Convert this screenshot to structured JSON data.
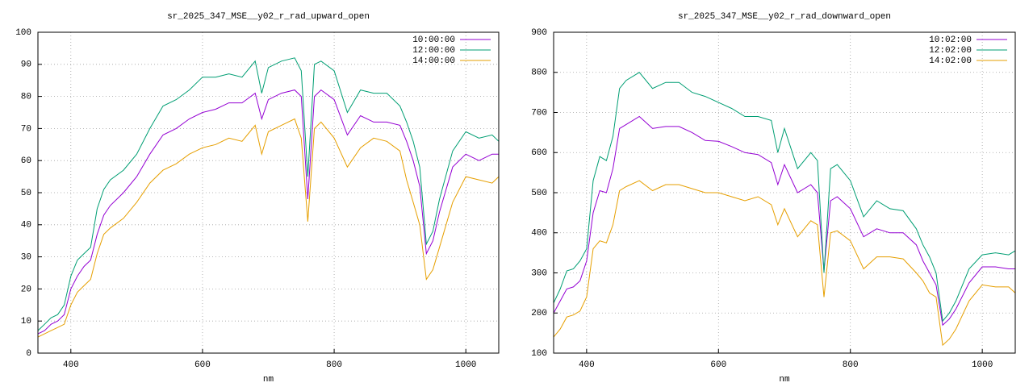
{
  "chart_data": [
    {
      "type": "line",
      "title": "sr_2025_347_MSE__y02_r_rad_upward_open",
      "xlabel": "nm",
      "xlim": [
        350,
        1050
      ],
      "xticks": [
        400,
        600,
        800,
        1000
      ],
      "ylim": [
        0,
        100
      ],
      "yticks": [
        0,
        10,
        20,
        30,
        40,
        50,
        60,
        70,
        80,
        90,
        100
      ],
      "grid": true,
      "legend": "top-right",
      "x": [
        350,
        360,
        370,
        380,
        390,
        400,
        410,
        420,
        430,
        440,
        450,
        460,
        480,
        500,
        520,
        540,
        560,
        580,
        600,
        620,
        640,
        660,
        680,
        690,
        700,
        720,
        740,
        750,
        760,
        770,
        780,
        800,
        820,
        840,
        860,
        880,
        900,
        910,
        920,
        930,
        940,
        950,
        960,
        980,
        1000,
        1020,
        1040,
        1050
      ],
      "series": [
        {
          "name": "10:00:00",
          "color": "#9400d3",
          "values": [
            6,
            7,
            9,
            10,
            12,
            20,
            24,
            27,
            29,
            37,
            43,
            46,
            50,
            55,
            62,
            68,
            70,
            73,
            75,
            76,
            78,
            78,
            81,
            73,
            79,
            81,
            82,
            80,
            48,
            80,
            82,
            79,
            68,
            74,
            72,
            72,
            71,
            66,
            60,
            52,
            31,
            35,
            44,
            58,
            62,
            60,
            62,
            62
          ]
        },
        {
          "name": "12:00:00",
          "color": "#009e73",
          "values": [
            7,
            9,
            11,
            12,
            15,
            24,
            29,
            31,
            33,
            45,
            51,
            54,
            57,
            62,
            70,
            77,
            79,
            82,
            86,
            86,
            87,
            86,
            91,
            81,
            89,
            91,
            92,
            88,
            55,
            90,
            91,
            88,
            75,
            82,
            81,
            81,
            77,
            72,
            66,
            58,
            34,
            38,
            48,
            63,
            69,
            67,
            68,
            66
          ]
        },
        {
          "name": "14:00:00",
          "color": "#e69f00",
          "values": [
            5,
            6,
            7,
            8,
            9,
            15,
            19,
            21,
            23,
            31,
            37,
            39,
            42,
            47,
            53,
            57,
            59,
            62,
            64,
            65,
            67,
            66,
            71,
            62,
            69,
            71,
            73,
            67,
            41,
            70,
            72,
            67,
            58,
            64,
            67,
            66,
            63,
            54,
            47,
            40,
            23,
            26,
            33,
            47,
            55,
            54,
            53,
            55
          ]
        }
      ]
    },
    {
      "type": "line",
      "title": "sr_2025_347_MSE__y02_r_rad_downward_open",
      "xlabel": "nm",
      "xlim": [
        350,
        1050
      ],
      "xticks": [
        400,
        600,
        800,
        1000
      ],
      "ylim": [
        100,
        900
      ],
      "yticks": [
        100,
        200,
        300,
        400,
        500,
        600,
        700,
        800,
        900
      ],
      "grid": true,
      "legend": "top-right",
      "x": [
        350,
        360,
        370,
        380,
        390,
        400,
        410,
        420,
        430,
        440,
        450,
        460,
        480,
        500,
        520,
        540,
        560,
        580,
        600,
        620,
        640,
        660,
        680,
        690,
        700,
        720,
        740,
        750,
        760,
        770,
        780,
        800,
        820,
        840,
        860,
        880,
        900,
        910,
        920,
        930,
        940,
        950,
        960,
        980,
        1000,
        1020,
        1040,
        1050
      ],
      "series": [
        {
          "name": "10:02:00",
          "color": "#9400d3",
          "values": [
            200,
            230,
            260,
            265,
            280,
            330,
            450,
            505,
            500,
            560,
            660,
            670,
            690,
            660,
            665,
            665,
            650,
            630,
            628,
            615,
            600,
            595,
            575,
            520,
            570,
            500,
            520,
            500,
            305,
            480,
            490,
            460,
            390,
            410,
            400,
            400,
            370,
            330,
            300,
            270,
            170,
            185,
            210,
            275,
            315,
            315,
            310,
            310
          ]
        },
        {
          "name": "12:02:00",
          "color": "#009e73",
          "values": [
            225,
            260,
            305,
            310,
            330,
            360,
            530,
            590,
            580,
            640,
            760,
            780,
            800,
            760,
            775,
            775,
            750,
            740,
            725,
            710,
            690,
            690,
            680,
            600,
            660,
            560,
            600,
            580,
            300,
            560,
            570,
            530,
            440,
            480,
            460,
            455,
            410,
            370,
            340,
            300,
            180,
            200,
            230,
            310,
            345,
            350,
            345,
            355
          ]
        },
        {
          "name": "14:02:00",
          "color": "#e69f00",
          "values": [
            140,
            160,
            190,
            195,
            205,
            240,
            360,
            380,
            375,
            420,
            505,
            515,
            530,
            505,
            520,
            520,
            510,
            500,
            500,
            490,
            480,
            490,
            470,
            420,
            460,
            390,
            430,
            420,
            240,
            400,
            405,
            380,
            310,
            340,
            340,
            335,
            300,
            280,
            250,
            240,
            120,
            135,
            160,
            230,
            270,
            265,
            265,
            250
          ]
        }
      ]
    }
  ]
}
